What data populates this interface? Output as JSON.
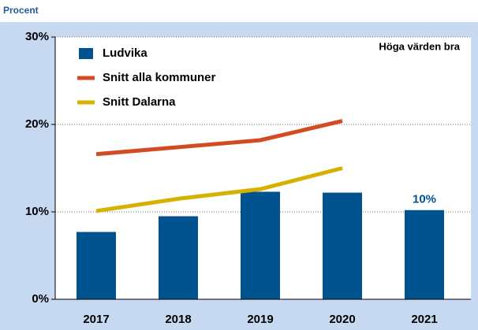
{
  "chart_data": {
    "type": "bar",
    "y_label": "Procent",
    "annotation": "Höga värden bra",
    "categories": [
      "2017",
      "2018",
      "2019",
      "2020",
      "2021"
    ],
    "series": [
      {
        "name": "Ludvika",
        "type": "bar",
        "color": "#00538f",
        "values": [
          7.7,
          9.5,
          12.3,
          12.2,
          10.2
        ],
        "value_labels": [
          null,
          null,
          null,
          null,
          "10%"
        ]
      },
      {
        "name": "Snitt alla kommuner",
        "type": "line",
        "color": "#d44a23",
        "values": [
          16.6,
          17.4,
          18.2,
          20.4,
          null
        ]
      },
      {
        "name": "Snitt Dalarna",
        "type": "line",
        "color": "#d8b100",
        "values": [
          10.1,
          11.5,
          12.6,
          15.0,
          null
        ]
      }
    ],
    "ylim": [
      0,
      30
    ],
    "yticks": [
      {
        "value": 0,
        "label": "0%"
      },
      {
        "value": 10,
        "label": "10%"
      },
      {
        "value": 20,
        "label": "20%"
      },
      {
        "value": 30,
        "label": "30%"
      }
    ],
    "grid": true,
    "legend": "top-left"
  }
}
